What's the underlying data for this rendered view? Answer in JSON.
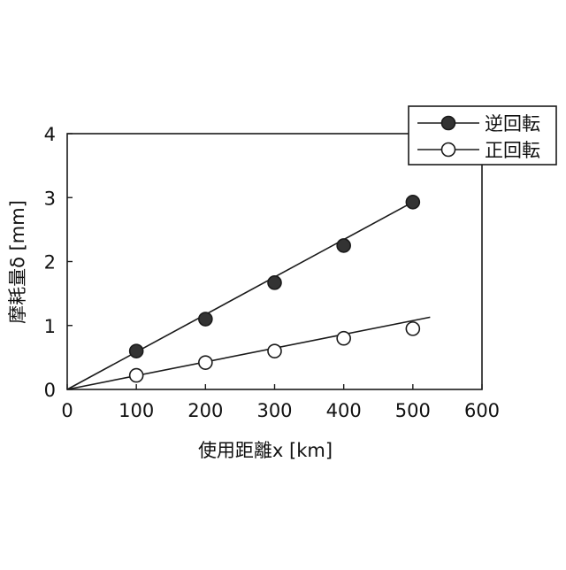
{
  "chart_data": {
    "type": "scatter",
    "xlabel": "使用距離x [km]",
    "ylabel": "摩耗量δ [mm]",
    "xlim": [
      0,
      600
    ],
    "ylim": [
      0,
      4
    ],
    "xticks": [
      0,
      100,
      200,
      300,
      400,
      500,
      600
    ],
    "yticks": [
      0,
      1,
      2,
      3,
      4
    ],
    "grid": false,
    "legend_position": "top-right",
    "series": [
      {
        "name": "逆回転",
        "marker": "filled-circle",
        "x": [
          100,
          200,
          300,
          400,
          500
        ],
        "y": [
          0.6,
          1.1,
          1.67,
          2.25,
          2.93
        ],
        "fit_line": {
          "x": [
            0,
            500
          ],
          "y": [
            0,
            2.93
          ]
        }
      },
      {
        "name": "正回転",
        "marker": "open-circle",
        "x": [
          100,
          200,
          300,
          400,
          500
        ],
        "y": [
          0.22,
          0.42,
          0.6,
          0.8,
          0.95
        ],
        "fit_line": {
          "x": [
            0,
            525
          ],
          "y": [
            0,
            1.13
          ]
        }
      }
    ]
  },
  "colors": {
    "axis": "#1a1a1a",
    "filled_marker": "#333333",
    "open_marker": "#ffffff"
  }
}
